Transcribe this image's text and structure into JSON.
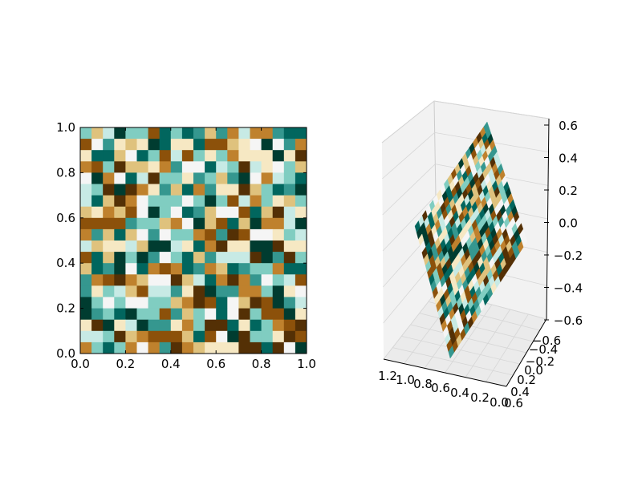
{
  "chart_data": [
    {
      "type": "heatmap",
      "title": "",
      "xlabel": "",
      "ylabel": "",
      "xlim": [
        0.0,
        1.0
      ],
      "ylim": [
        0.0,
        1.0
      ],
      "grid": "20x20 cells",
      "colormap": "BrBG",
      "xticks": [
        "0.0",
        "0.2",
        "0.4",
        "0.6",
        "0.8",
        "1.0"
      ],
      "yticks": [
        "0.0",
        "0.2",
        "0.4",
        "0.6",
        "0.8",
        "1.0"
      ]
    },
    {
      "type": "surface3d",
      "title": "",
      "colormap": "BrBG",
      "grid": "20x20 cells, random colors, planar surface",
      "xticks": [
        "1.2",
        "1.0",
        "0.8",
        "0.6",
        "0.4",
        "0.2",
        "0.0"
      ],
      "yticks": [
        "−0.6",
        "−0.4",
        "−0.2",
        "0.0",
        "0.2",
        "0.4",
        "0.6"
      ],
      "zticks": [
        "−0.6",
        "−0.4",
        "−0.2",
        "0.0",
        "0.2",
        "0.4",
        "0.6"
      ],
      "zrange": [
        -0.6,
        0.6
      ],
      "pane_color": "#f2f2f2"
    }
  ],
  "colors": {
    "palette": [
      "#543005",
      "#8c510a",
      "#bf812d",
      "#dfc27d",
      "#f6e8c3",
      "#f5f5f5",
      "#c7eae5",
      "#80cdc1",
      "#35978f",
      "#01665e",
      "#003c30"
    ]
  }
}
